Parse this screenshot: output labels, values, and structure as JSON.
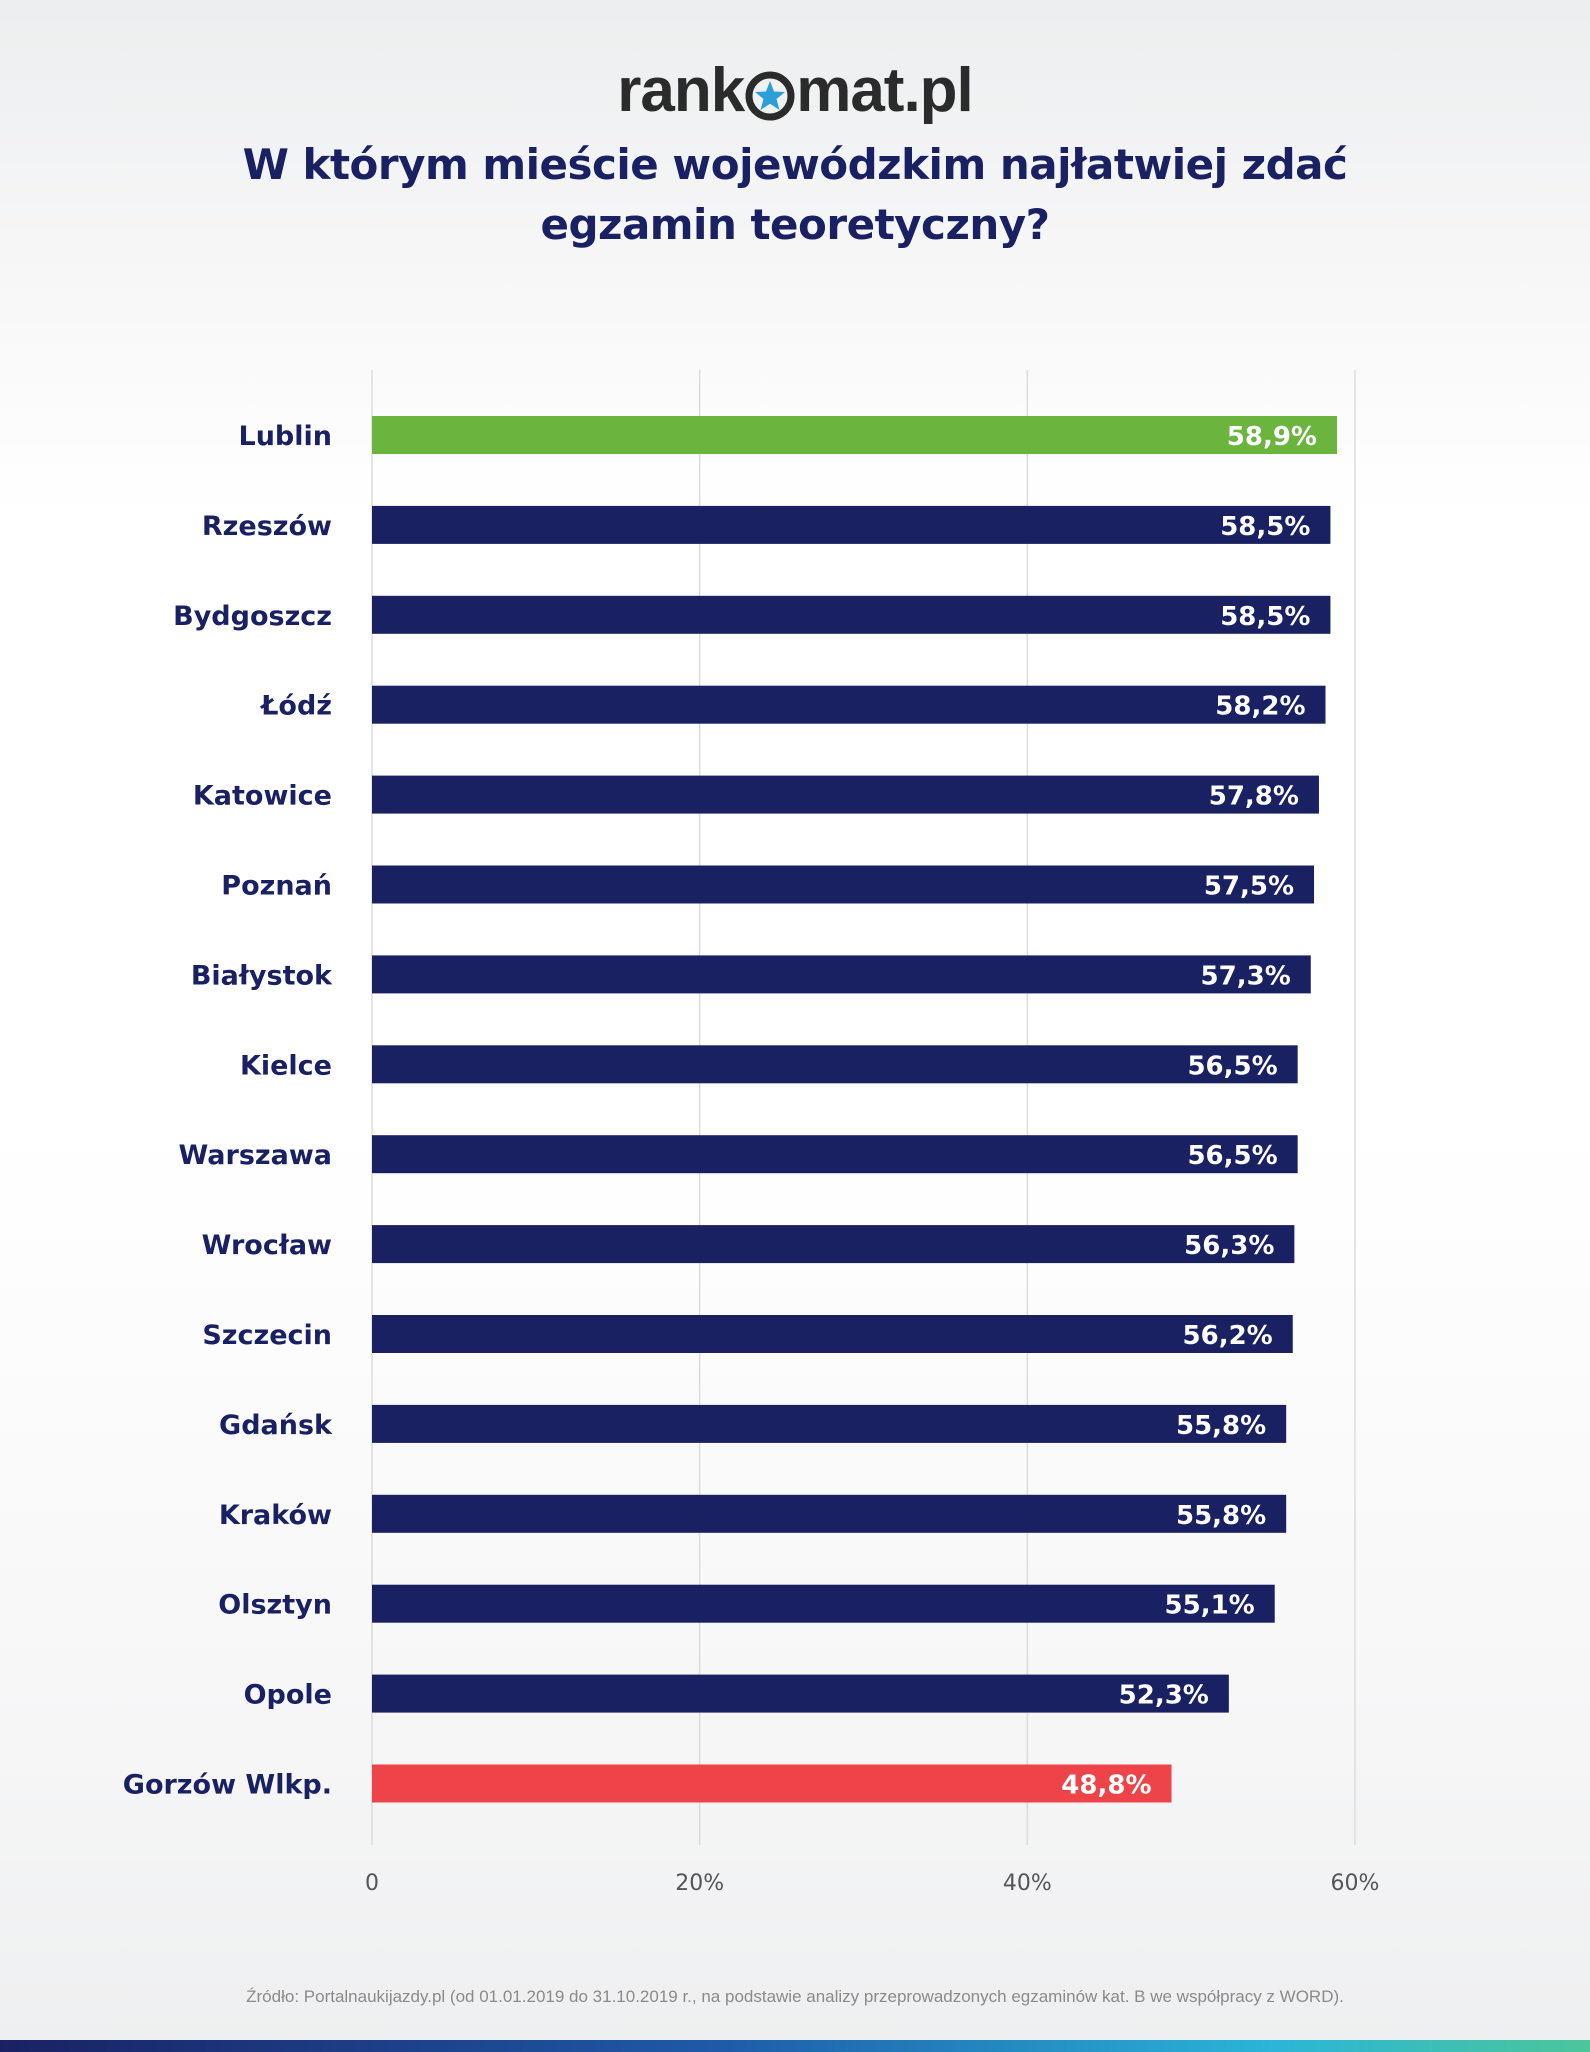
{
  "header": {
    "logo_pre": "rank",
    "logo_post": "mat.pl",
    "logo_star_icon": "star-circle-icon",
    "title_line1": "W którym mieście wojewódzkim najłatwiej zdać",
    "title_line2": "egzamin teoretyczny?"
  },
  "chart_data": {
    "type": "bar",
    "orientation": "horizontal",
    "categories": [
      "Lublin",
      "Rzeszów",
      "Bydgoszcz",
      "Łódź",
      "Katowice",
      "Poznań",
      "Białystok",
      "Kielce",
      "Warszawa",
      "Wrocław",
      "Szczecin",
      "Gdańsk",
      "Kraków",
      "Olsztyn",
      "Opole",
      "Gorzów Wlkp."
    ],
    "values": [
      58.9,
      58.5,
      58.5,
      58.2,
      57.8,
      57.5,
      57.3,
      56.5,
      56.5,
      56.3,
      56.2,
      55.8,
      55.8,
      55.1,
      52.3,
      48.8
    ],
    "value_labels": [
      "58,9%",
      "58,5%",
      "58,5%",
      "58,2%",
      "57,8%",
      "57,5%",
      "57,3%",
      "56,5%",
      "56,5%",
      "56,3%",
      "56,2%",
      "55,8%",
      "55,8%",
      "55,1%",
      "52,3%",
      "48,8%"
    ],
    "colors": [
      "#6bb53e",
      "#1a2163",
      "#1a2163",
      "#1a2163",
      "#1a2163",
      "#1a2163",
      "#1a2163",
      "#1a2163",
      "#1a2163",
      "#1a2163",
      "#1a2163",
      "#1a2163",
      "#1a2163",
      "#1a2163",
      "#1a2163",
      "#ee4449"
    ],
    "xlim": [
      0,
      60
    ],
    "x_ticks": [
      0,
      20,
      40,
      60
    ],
    "x_tick_labels": [
      "0",
      "20%",
      "40%",
      "60%"
    ],
    "grid": true,
    "legend": "none"
  },
  "footer": {
    "source": "Źródło: Portalnaukijazdy.pl (od 01.01.2019 do 31.10.2019 r., na podstawie analizy przeprowadzonych egzaminów kat. B we współpracy z WORD)."
  }
}
